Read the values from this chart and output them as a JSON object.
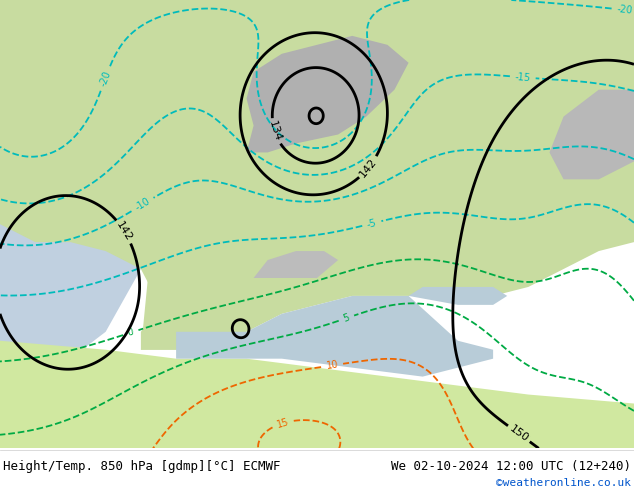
{
  "title_left": "Height/Temp. 850 hPa [gdmp][°C] ECMWF",
  "title_right": "We 02-10-2024 12:00 UTC (12+240)",
  "credit": "©weatheronline.co.uk",
  "background_color": "#ffffff",
  "figsize": [
    6.34,
    4.9
  ],
  "dpi": 100,
  "font_size_title": 9,
  "font_size_credit": 8,
  "xlim": [
    -30,
    60
  ],
  "ylim": [
    25,
    75
  ],
  "land_color": "#c8dca0",
  "land_color2": "#d0e8a0",
  "sea_color": "#d0dce8",
  "mountain_color": "#b0b0b0",
  "height_color": "#000000",
  "temp_cyan_color": "#00bbbb",
  "temp_green_color": "#00aa44",
  "temp_orange_color": "#ee6600",
  "temp_red_color": "#cc2200"
}
